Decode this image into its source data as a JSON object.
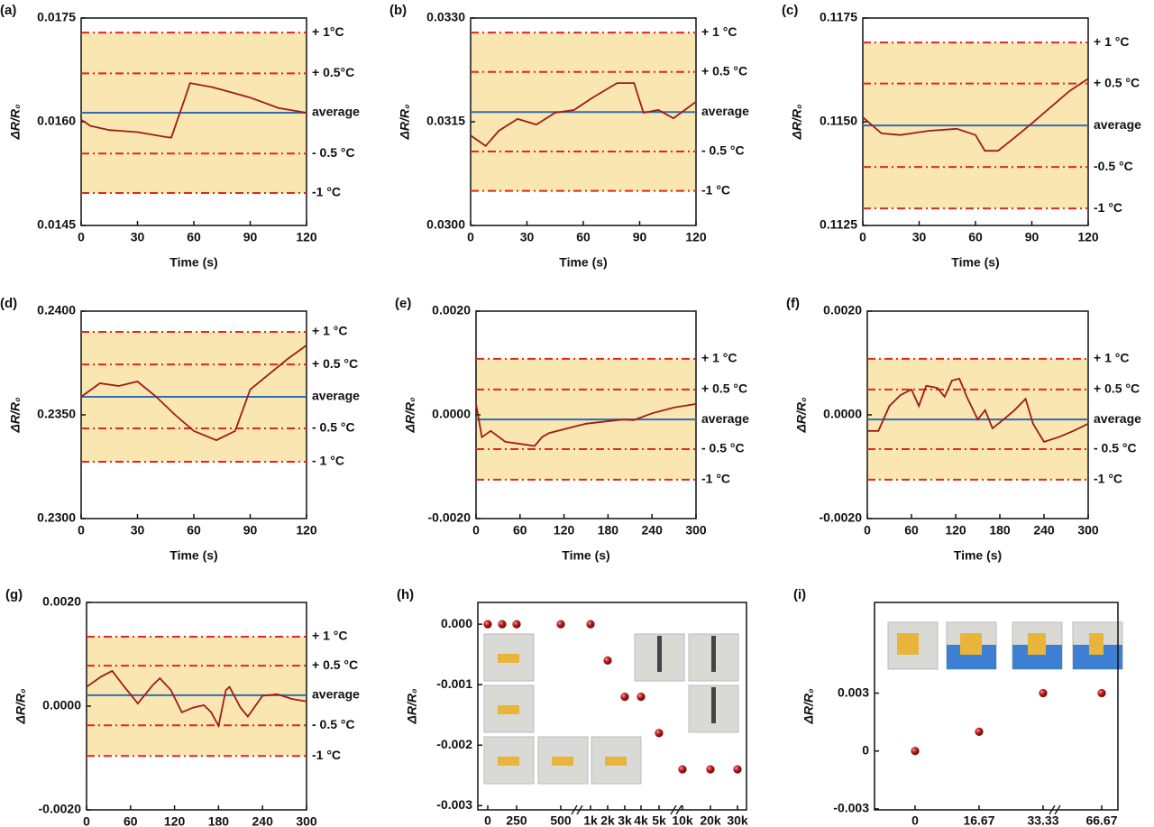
{
  "chart_data": [
    {
      "type": "line",
      "label": "(a)",
      "x_label": "Time (s)",
      "y_label": "ΔR/R₀",
      "color": "#9e1b1b",
      "band_color": "#fae6b0",
      "x": [
        0,
        5,
        15,
        30,
        45,
        48,
        55,
        58,
        70,
        90,
        105,
        120
      ],
      "values": [
        0.01603,
        0.01594,
        0.01588,
        0.01585,
        0.01578,
        0.01577,
        0.01632,
        0.01656,
        0.0165,
        0.01635,
        0.0162,
        0.01613
      ],
      "xlim": [
        0,
        120
      ],
      "xticks": [
        0,
        30,
        60,
        90,
        120
      ],
      "ylim": [
        0.0145,
        0.0175
      ],
      "yticks": [
        0.0145,
        {
          "value": 0.016,
          "label": "0.0160"
        },
        0.0175
      ],
      "ref_lines": [
        {
          "value": 0.01729,
          "label": "+ 1°C",
          "color": "#e0281f",
          "style": "dashdot"
        },
        {
          "value": 0.0167,
          "label": "+ 0.5°C",
          "color": "#e0281f",
          "style": "dashdot"
        },
        {
          "value": 0.01613,
          "label": "average",
          "color": "#2e6db4",
          "style": "solid"
        },
        {
          "value": 0.01554,
          "label": "- 0.5 °C",
          "color": "#e0281f",
          "style": "dashdot"
        },
        {
          "value": 0.01497,
          "label": "-1 °C",
          "color": "#e0281f",
          "style": "dashdot"
        }
      ]
    },
    {
      "type": "line",
      "label": "(b)",
      "x_label": "Time (s)",
      "y_label": "ΔR/R₀",
      "color": "#9e1b1b",
      "band_color": "#fae6b0",
      "x": [
        0,
        8,
        15,
        25,
        35,
        45,
        55,
        65,
        78,
        87,
        92,
        100,
        108,
        120
      ],
      "values": [
        0.0313,
        0.03115,
        0.03137,
        0.03154,
        0.03146,
        0.03163,
        0.03167,
        0.03185,
        0.03206,
        0.03206,
        0.03163,
        0.03167,
        0.03155,
        0.03179
      ],
      "xlim": [
        0,
        120
      ],
      "xticks": [
        0,
        30,
        60,
        90,
        120
      ],
      "ylim": [
        0.03,
        0.033
      ],
      "yticks": [
        {
          "value": 0.03,
          "label": "0.0300"
        },
        0.0315,
        {
          "value": 0.033,
          "label": "0.0330"
        }
      ],
      "ref_lines": [
        {
          "value": 0.03279,
          "label": "+ 1 °C",
          "color": "#e0281f",
          "style": "dashdot"
        },
        {
          "value": 0.03222,
          "label": "+ 0.5 °C",
          "color": "#e0281f",
          "style": "dashdot"
        },
        {
          "value": 0.03164,
          "label": "average",
          "color": "#2e6db4",
          "style": "solid"
        },
        {
          "value": 0.03107,
          "label": "- 0.5 °C",
          "color": "#e0281f",
          "style": "dashdot"
        },
        {
          "value": 0.0305,
          "label": "-1 °C",
          "color": "#e0281f",
          "style": "dashdot"
        }
      ]
    },
    {
      "type": "line",
      "label": "(c)",
      "x_label": "Time (s)",
      "y_label": "ΔR/R₀",
      "color": "#9e1b1b",
      "band_color": "#fae6b0",
      "x": [
        0,
        10,
        20,
        35,
        50,
        60,
        65,
        72,
        80,
        90,
        100,
        110,
        120
      ],
      "values": [
        0.11511,
        0.11472,
        0.11468,
        0.11478,
        0.11483,
        0.11468,
        0.1143,
        0.1143,
        0.11459,
        0.11496,
        0.11535,
        0.11574,
        0.11604
      ],
      "xlim": [
        0,
        120
      ],
      "xticks": [
        0,
        30,
        60,
        90,
        120
      ],
      "ylim": [
        0.1125,
        0.1175
      ],
      "yticks": [
        0.1125,
        {
          "value": 0.115,
          "label": "0.1150"
        },
        0.1175
      ],
      "ref_lines": [
        {
          "value": 0.11691,
          "label": "+ 1 °C",
          "color": "#e0281f",
          "style": "dashdot"
        },
        {
          "value": 0.11592,
          "label": "+ 0.5 °C",
          "color": "#e0281f",
          "style": "dashdot"
        },
        {
          "value": 0.11491,
          "label": "average",
          "color": "#2e6db4",
          "style": "solid"
        },
        {
          "value": 0.11391,
          "label": "-0.5 °C",
          "color": "#e0281f",
          "style": "dashdot"
        },
        {
          "value": 0.11291,
          "label": "-1 °C",
          "color": "#e0281f",
          "style": "dashdot"
        }
      ]
    },
    {
      "type": "line",
      "label": "(d)",
      "x_label": "Time (s)",
      "y_label": "ΔR/R₀",
      "color": "#9e1b1b",
      "band_color": "#fae6b0",
      "x": [
        0,
        10,
        20,
        30,
        40,
        50,
        60,
        72,
        82,
        90,
        100,
        110,
        120
      ],
      "values": [
        0.23587,
        0.23652,
        0.23639,
        0.23661,
        0.23587,
        0.235,
        0.23422,
        0.23378,
        0.23422,
        0.23622,
        0.23696,
        0.2377,
        0.23835
      ],
      "xlim": [
        0,
        120
      ],
      "xticks": [
        0,
        30,
        60,
        90,
        120
      ],
      "ylim": [
        0.23,
        0.24
      ],
      "yticks": [
        {
          "value": 0.23,
          "label": "0.2300"
        },
        {
          "value": 0.235,
          "label": "0.2350"
        },
        {
          "value": 0.24,
          "label": "0.2400"
        }
      ],
      "ref_lines": [
        {
          "value": 0.239,
          "label": "+ 1 °C",
          "color": "#e0281f",
          "style": "dashdot"
        },
        {
          "value": 0.23743,
          "label": "+ 0.5 °C",
          "color": "#e0281f",
          "style": "dashdot"
        },
        {
          "value": 0.23587,
          "label": "average",
          "color": "#2e6db4",
          "style": "solid"
        },
        {
          "value": 0.23435,
          "label": "- 0.5 °C",
          "color": "#e0281f",
          "style": "dashdot"
        },
        {
          "value": 0.23274,
          "label": "- 1 °C",
          "color": "#e0281f",
          "style": "dashdot"
        }
      ]
    },
    {
      "type": "line",
      "label": "(e)",
      "x_label": "Time (s)",
      "y_label": "ΔR/R₀",
      "color": "#9e1b1b",
      "band_color": "#fae6b0",
      "x": [
        0,
        8,
        20,
        40,
        60,
        80,
        90,
        100,
        150,
        200,
        215,
        240,
        270,
        300
      ],
      "values": [
        0.00021,
        -0.00043,
        -0.00031,
        -0.00052,
        -0.00056,
        -0.0006,
        -0.00043,
        -0.00035,
        -0.00017,
        -9e-05,
        -0.0001,
        3e-05,
        0.00014,
        0.00021
      ],
      "xlim": [
        0,
        300
      ],
      "xticks": [
        0,
        60,
        120,
        180,
        240,
        300
      ],
      "ylim": [
        -0.002,
        0.002
      ],
      "yticks": [
        {
          "value": -0.002,
          "label": "-0.0020"
        },
        {
          "value": 0,
          "label": "0.0000"
        },
        {
          "value": 0.002,
          "label": "0.0020"
        }
      ],
      "ref_lines": [
        {
          "value": 0.00108,
          "label": "+ 1 °C",
          "color": "#e0281f",
          "style": "dashdot"
        },
        {
          "value": 0.00049,
          "label": "+ 0.5 °C",
          "color": "#e0281f",
          "style": "dashdot"
        },
        {
          "value": -9e-05,
          "label": "average",
          "color": "#2e6db4",
          "style": "solid"
        },
        {
          "value": -0.00066,
          "label": "- 0.5 °C",
          "color": "#e0281f",
          "style": "dashdot"
        },
        {
          "value": -0.00125,
          "label": "-1 °C",
          "color": "#e0281f",
          "style": "dashdot"
        }
      ]
    },
    {
      "type": "line",
      "label": "(f)",
      "x_label": "Time (s)",
      "y_label": "ΔR/R₀",
      "color": "#9e1b1b",
      "band_color": "#fae6b0",
      "x": [
        0,
        15,
        30,
        45,
        60,
        70,
        80,
        95,
        105,
        115,
        125,
        135,
        150,
        160,
        170,
        185,
        200,
        215,
        225,
        240,
        260,
        280,
        300
      ],
      "values": [
        -0.00031,
        -0.00031,
        0.00017,
        0.00038,
        0.00049,
        0.00017,
        0.00056,
        0.00052,
        0.00035,
        0.00066,
        0.0007,
        0.00035,
        -9e-05,
        9e-05,
        -0.00026,
        -9e-05,
        9e-05,
        0.00031,
        -0.00017,
        -0.00052,
        -0.00043,
        -0.00031,
        -0.00017
      ],
      "xlim": [
        0,
        300
      ],
      "xticks": [
        0,
        60,
        120,
        180,
        240,
        300
      ],
      "ylim": [
        -0.002,
        0.002
      ],
      "yticks": [
        {
          "value": -0.002,
          "label": "-0.0020"
        },
        {
          "value": 0,
          "label": "0.0000"
        },
        {
          "value": 0.002,
          "label": "0.0020"
        }
      ],
      "ref_lines": [
        {
          "value": 0.00108,
          "label": "+ 1 °C",
          "color": "#e0281f",
          "style": "dashdot"
        },
        {
          "value": 0.00049,
          "label": "+ 0.5 °C",
          "color": "#e0281f",
          "style": "dashdot"
        },
        {
          "value": -9e-05,
          "label": "average",
          "color": "#2e6db4",
          "style": "solid"
        },
        {
          "value": -0.00066,
          "label": "- 0.5 °C",
          "color": "#e0281f",
          "style": "dashdot"
        },
        {
          "value": -0.00125,
          "label": "-1 °C",
          "color": "#e0281f",
          "style": "dashdot"
        }
      ]
    },
    {
      "type": "line",
      "label": "(g)",
      "y_label": "ΔR/R₀",
      "color": "#9e1b1b",
      "band_color": "#fae6b0",
      "x": [
        0,
        20,
        35,
        50,
        70,
        90,
        100,
        115,
        130,
        145,
        160,
        170,
        180,
        190,
        195,
        210,
        220,
        240,
        260,
        280,
        300
      ],
      "values": [
        0.00037,
        0.00057,
        0.00068,
        0.0004,
        5e-05,
        0.0004,
        0.00054,
        0.00031,
        -0.00012,
        -3e-05,
        2e-05,
        -0.00012,
        -0.00038,
        0.00031,
        0.00037,
        -3e-05,
        -0.0002,
        0.0002,
        0.00023,
        0.00014,
        9e-05
      ],
      "xlim": [
        0,
        300
      ],
      "xticks": [
        0,
        60,
        120,
        180,
        240,
        300
      ],
      "ylim": [
        -0.002,
        0.002
      ],
      "yticks": [
        {
          "value": -0.002,
          "label": "-0.0020"
        },
        {
          "value": 0,
          "label": "0.0000"
        },
        {
          "value": 0.002,
          "label": "0.0020"
        }
      ],
      "ref_lines": [
        {
          "value": 0.00134,
          "label": "+ 1 °C",
          "color": "#e0281f",
          "style": "dashdot"
        },
        {
          "value": 0.00078,
          "label": "+ 0.5 °C",
          "color": "#e0281f",
          "style": "dashdot"
        },
        {
          "value": 0.00021,
          "label": "average",
          "color": "#2e6db4",
          "style": "solid"
        },
        {
          "value": -0.00037,
          "label": "- 0.5 °C",
          "color": "#e0281f",
          "style": "dashdot"
        },
        {
          "value": -0.00096,
          "label": "-1 °C",
          "color": "#e0281f",
          "style": "dashdot"
        }
      ]
    },
    {
      "type": "scatter",
      "label": "(h)",
      "y_label": "ΔR/R₀",
      "color": "#b81c1c",
      "categories": [
        "0",
        null,
        "250",
        "500",
        "1k",
        "2k",
        "3k",
        "4k",
        "5k",
        "10k",
        "20k",
        "30k"
      ],
      "values": [
        0,
        0,
        0,
        0,
        0,
        -0.0006,
        -0.0012,
        -0.0012,
        -0.0018,
        -0.0024,
        -0.0024,
        -0.0024
      ],
      "ylim": [
        -0.00307,
        0.00036
      ],
      "yticks": [
        {
          "value": 0,
          "label": "0.000"
        },
        -0.001,
        -0.002,
        -0.003
      ]
    },
    {
      "type": "scatter",
      "label": "(i)",
      "y_label": "ΔR/R₀",
      "color": "#b81c1c",
      "categories": [
        "0",
        "16.67",
        "33.33",
        "66.67"
      ],
      "values": [
        0,
        0.001,
        0.003,
        0.003
      ],
      "ylim": [
        -0.00305,
        0.0077
      ],
      "yticks": [
        -0.003,
        0,
        0.003
      ]
    }
  ]
}
